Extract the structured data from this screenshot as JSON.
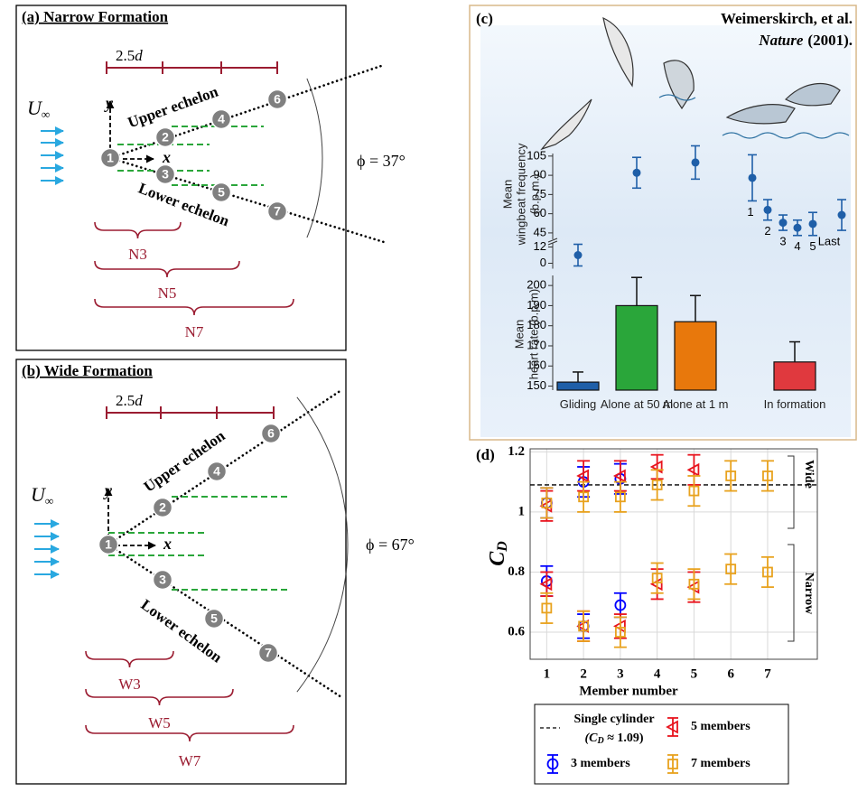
{
  "panel_a": {
    "title": "(a) Narrow Formation",
    "spacing": "2.5",
    "spacing_unit": "d",
    "freestream": "U",
    "freestream_sub": "∞",
    "y_axis": "y",
    "x_axis": "x",
    "upper": "Upper echelon",
    "lower": "Lower echelon",
    "angle": "ϕ = 37°",
    "nodes": [
      "1",
      "2",
      "3",
      "4",
      "5",
      "6",
      "7"
    ],
    "groups": [
      "N3",
      "N5",
      "N7"
    ]
  },
  "panel_b": {
    "title": "(b) Wide Formation",
    "spacing": "2.5",
    "spacing_unit": "d",
    "freestream": "U",
    "freestream_sub": "∞",
    "y_axis": "y",
    "x_axis": "x",
    "upper": "Upper echelon",
    "lower": "Lower echelon",
    "angle": "ϕ = 67°",
    "nodes": [
      "1",
      "2",
      "3",
      "4",
      "5",
      "6",
      "7"
    ],
    "groups": [
      "W3",
      "W5",
      "W7"
    ]
  },
  "panel_c": {
    "label": "(c)",
    "authors": "Weimerskirch, et al.",
    "journal": "Nature",
    "year": "(2001)."
  },
  "panel_d": {
    "label": "(d)"
  },
  "chart_data": [
    {
      "type": "scatter",
      "ylabel": [
        "Mean",
        "wingbeat frequency",
        "(b.p.m.)"
      ],
      "categories": [
        null,
        null,
        null,
        "1",
        "2",
        "3",
        "4",
        "5",
        "Last"
      ],
      "ylim": [
        40,
        107
      ],
      "yticks": [
        45,
        60,
        75,
        90,
        105
      ],
      "y2lim": [
        -4,
        15
      ],
      "y2ticks": [
        0,
        12
      ],
      "series": [
        {
          "color": "#1f5fa8",
          "values": [
            null,
            92,
            100,
            88,
            63,
            53,
            49,
            52,
            59
          ],
          "errors": [
            null,
            12,
            13,
            18,
            8,
            6,
            6,
            9,
            12
          ]
        },
        {
          "axis": "y2",
          "color": "#1f5fa8",
          "values": [
            6,
            null,
            null,
            null,
            null,
            null,
            null,
            null,
            null
          ],
          "errors": [
            8,
            null,
            null,
            null,
            null,
            null,
            null,
            null,
            null
          ]
        }
      ]
    },
    {
      "type": "bar",
      "ylabel": [
        "Mean",
        "heart rate (b.p.m)"
      ],
      "categories": [
        "Gliding",
        "Alone at 50 m",
        "Alone at 1 m",
        "In formation"
      ],
      "values": [
        152,
        190,
        182,
        162
      ],
      "errors": [
        5,
        14,
        13,
        10
      ],
      "colors": [
        "#1f5fa8",
        "#2aa63a",
        "#e8780c",
        "#e0393e"
      ],
      "ylim": [
        148,
        205
      ],
      "yticks": [
        150,
        160,
        170,
        180,
        190,
        200
      ]
    },
    {
      "type": "errorbar",
      "xlabel": "Member number",
      "ylabel": [
        "C",
        "D"
      ],
      "xlim": [
        0.55,
        8.35
      ],
      "xticks": [
        1,
        2,
        3,
        4,
        5,
        6,
        7
      ],
      "ylim": [
        0.51,
        1.21
      ],
      "yticks": [
        0.6,
        0.8,
        1,
        1.2
      ],
      "grid": true,
      "regions": [
        "Wide",
        "Narrow"
      ],
      "reference": {
        "value": 1.09,
        "name": "Single cylinder",
        "label": [
          "(C",
          "D",
          " ≈ 1.09)"
        ],
        "color": "#000000"
      },
      "series": [
        {
          "name": "3 members",
          "color": "#0000ff",
          "marker": "circle",
          "x": [
            1,
            2,
            3
          ],
          "wide": [
            1.03,
            1.1,
            1.11
          ],
          "wide_errors": [
            0.05,
            0.05,
            0.05
          ],
          "narrow": [
            0.77,
            0.62,
            0.69
          ],
          "narrow_errors": [
            0.05,
            0.04,
            0.04
          ]
        },
        {
          "name": "5 members",
          "color": "#e8141e",
          "marker": "triangle-left",
          "x": [
            1,
            2,
            3,
            4,
            5
          ],
          "wide": [
            1.02,
            1.12,
            1.12,
            1.15,
            1.14
          ],
          "wide_errors": [
            0.05,
            0.05,
            0.05,
            0.04,
            0.05
          ],
          "narrow": [
            0.76,
            0.62,
            0.62,
            0.76,
            0.75
          ],
          "narrow_errors": [
            0.04,
            0.05,
            0.04,
            0.05,
            0.05
          ]
        },
        {
          "name": "7 members",
          "color": "#e8a21e",
          "marker": "square",
          "x": [
            1,
            2,
            3,
            4,
            5,
            6,
            7
          ],
          "wide": [
            1.03,
            1.05,
            1.05,
            1.09,
            1.07,
            1.12,
            1.12
          ],
          "wide_errors": [
            0.05,
            0.05,
            0.05,
            0.05,
            0.05,
            0.05,
            0.05
          ],
          "narrow": [
            0.68,
            0.62,
            0.6,
            0.78,
            0.76,
            0.81,
            0.8
          ],
          "narrow_errors": [
            0.05,
            0.05,
            0.05,
            0.05,
            0.05,
            0.05,
            0.05
          ]
        }
      ]
    }
  ]
}
